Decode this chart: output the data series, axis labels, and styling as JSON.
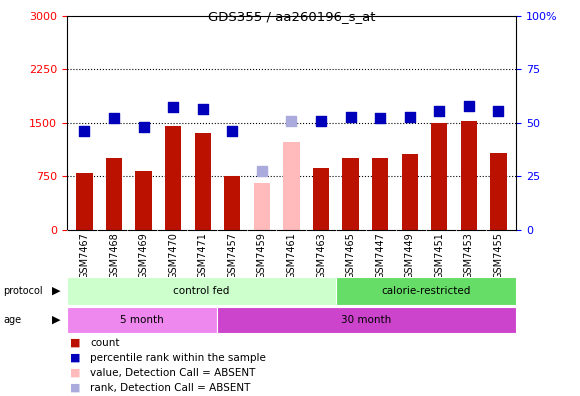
{
  "title": "GDS355 / aa260196_s_at",
  "samples": [
    "GSM7467",
    "GSM7468",
    "GSM7469",
    "GSM7470",
    "GSM7471",
    "GSM7457",
    "GSM7459",
    "GSM7461",
    "GSM7463",
    "GSM7465",
    "GSM7447",
    "GSM7449",
    "GSM7451",
    "GSM7453",
    "GSM7455"
  ],
  "bar_values": [
    790,
    1000,
    820,
    1460,
    1360,
    760,
    null,
    null,
    860,
    1010,
    1010,
    1060,
    1490,
    1530,
    1070
  ],
  "bar_absent_values": [
    null,
    null,
    null,
    null,
    null,
    null,
    650,
    1230,
    null,
    null,
    null,
    null,
    null,
    null,
    null
  ],
  "bar_color_present": "#bb1100",
  "bar_color_absent": "#ffbbbb",
  "rank_values": [
    1390,
    1570,
    1440,
    1720,
    1700,
    1380,
    null,
    null,
    1530,
    1575,
    1565,
    1575,
    1670,
    1740,
    1660
  ],
  "rank_absent_values": [
    null,
    null,
    null,
    null,
    null,
    null,
    830,
    1530,
    null,
    null,
    null,
    null,
    null,
    null,
    null
  ],
  "rank_color_present": "#0000bb",
  "rank_color_absent": "#aaaadd",
  "ylim_left": [
    0,
    3000
  ],
  "ylim_right": [
    0,
    100
  ],
  "yticks_left": [
    0,
    750,
    1500,
    2250,
    3000
  ],
  "yticks_right": [
    0,
    25,
    50,
    75,
    100
  ],
  "hlines": [
    750,
    1500,
    2250
  ],
  "protocol_groups": [
    {
      "label": "control fed",
      "start": 0,
      "end": 9,
      "color": "#ccffcc"
    },
    {
      "label": "calorie-restricted",
      "start": 9,
      "end": 15,
      "color": "#66dd66"
    }
  ],
  "age_groups": [
    {
      "label": "5 month",
      "start": 0,
      "end": 5,
      "color": "#ee88ee"
    },
    {
      "label": "30 month",
      "start": 5,
      "end": 15,
      "color": "#cc44cc"
    }
  ],
  "legend_items": [
    {
      "label": "count",
      "color": "#bb1100"
    },
    {
      "label": "percentile rank within the sample",
      "color": "#0000bb"
    },
    {
      "label": "value, Detection Call = ABSENT",
      "color": "#ffbbbb"
    },
    {
      "label": "rank, Detection Call = ABSENT",
      "color": "#aaaadd"
    }
  ],
  "bar_width": 0.55,
  "rank_marker_size": 55,
  "fig_width": 5.8,
  "fig_height": 3.96,
  "dpi": 100
}
